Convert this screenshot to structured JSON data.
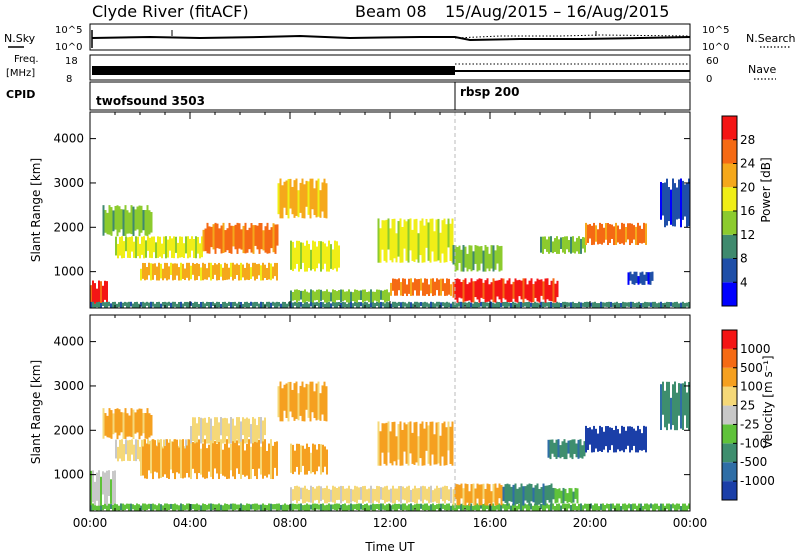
{
  "header": {
    "station": "Clyde River (fitACF)",
    "beam": "Beam 08",
    "dates": "15/Aug/2015 – 16/Aug/2015"
  },
  "params": {
    "nsky_label": "N.Sky",
    "nsearch_label": "N.Search",
    "nsky_ticks": [
      "10^5",
      "10^0"
    ],
    "nsearch_ticks": [
      "10^5",
      "10^0"
    ],
    "freq_label_1": "Freq.",
    "freq_label_2": "[MHz]",
    "freq_ticks": [
      "18",
      "8"
    ],
    "nave_label": "Nave",
    "nave_ticks": [
      "60",
      "0"
    ],
    "cpid_label": "CPID",
    "cpid_segments": [
      {
        "name": "twofsound 3503",
        "start_hour": 0
      },
      {
        "name": "rbsp 200",
        "start_hour": 14.6
      }
    ]
  },
  "chart_data": [
    {
      "type": "heatmap",
      "name": "power-panel",
      "xlabel": "",
      "ylabel": "Slant Range [km]",
      "x_range_hours": [
        0,
        24
      ],
      "ylim": [
        180,
        4600
      ],
      "yticks": [
        "1000",
        "2000",
        "3000",
        "4000"
      ],
      "colorbar": {
        "label": "Power [dB]",
        "ticks": [
          "4",
          "8",
          "12",
          "16",
          "20",
          "24",
          "28"
        ],
        "colors": [
          "#0000ff",
          "#1f4fa8",
          "#3f8a6e",
          "#8ccb2e",
          "#f0ee17",
          "#f5a81b",
          "#f56a14",
          "#f41515"
        ]
      },
      "regions": [
        {
          "t0": 0.0,
          "t1": 0.7,
          "r0": 200,
          "r1": 800,
          "level": 7
        },
        {
          "t0": 0.0,
          "t1": 24.0,
          "r0": 180,
          "r1": 320,
          "level": 2
        },
        {
          "t0": 0.5,
          "t1": 2.5,
          "r0": 1800,
          "r1": 2500,
          "level": 3
        },
        {
          "t0": 1.0,
          "t1": 4.5,
          "r0": 1300,
          "r1": 1800,
          "level": 4
        },
        {
          "t0": 4.5,
          "t1": 7.5,
          "r0": 1400,
          "r1": 2100,
          "level": 6
        },
        {
          "t0": 2.0,
          "t1": 7.5,
          "r0": 800,
          "r1": 1200,
          "level": 5
        },
        {
          "t0": 7.5,
          "t1": 9.5,
          "r0": 2200,
          "r1": 3100,
          "level": 5
        },
        {
          "t0": 8.0,
          "t1": 10.0,
          "r0": 1000,
          "r1": 1700,
          "level": 4
        },
        {
          "t0": 11.5,
          "t1": 14.5,
          "r0": 1200,
          "r1": 2200,
          "level": 4
        },
        {
          "t0": 8.0,
          "t1": 12.0,
          "r0": 300,
          "r1": 600,
          "level": 3
        },
        {
          "t0": 12.0,
          "t1": 14.5,
          "r0": 450,
          "r1": 850,
          "level": 6
        },
        {
          "t0": 14.5,
          "t1": 18.7,
          "r0": 300,
          "r1": 850,
          "level": 7
        },
        {
          "t0": 14.5,
          "t1": 16.5,
          "r0": 1000,
          "r1": 1600,
          "level": 3
        },
        {
          "t0": 18.0,
          "t1": 19.8,
          "r0": 1400,
          "r1": 1800,
          "level": 3
        },
        {
          "t0": 19.8,
          "t1": 22.3,
          "r0": 1600,
          "r1": 2100,
          "level": 6
        },
        {
          "t0": 21.5,
          "t1": 22.5,
          "r0": 700,
          "r1": 1000,
          "level": 1
        },
        {
          "t0": 22.8,
          "t1": 24.0,
          "r0": 2000,
          "r1": 3100,
          "level": 1
        }
      ]
    },
    {
      "type": "heatmap",
      "name": "velocity-panel",
      "xlabel": "Time UT",
      "ylabel": "Slant Range [km]",
      "x_range_hours": [
        0,
        24
      ],
      "xticks": [
        "00:00",
        "04:00",
        "08:00",
        "12:00",
        "16:00",
        "20:00",
        "00:00"
      ],
      "ylim": [
        180,
        4600
      ],
      "yticks": [
        "1000",
        "2000",
        "3000",
        "4000"
      ],
      "colorbar": {
        "label": "Velocity [m s⁻¹]",
        "ticks": [
          "1000",
          "500",
          "100",
          "25",
          "-25",
          "-100",
          "-500",
          "-1000"
        ],
        "colors": [
          "#1b3fa8",
          "#2f6ea6",
          "#3e8e6e",
          "#5fc23a",
          "#c8c8c8",
          "#f5d878",
          "#f5a020",
          "#f56a14",
          "#f41515"
        ]
      },
      "regions": [
        {
          "t0": 0.0,
          "t1": 24.0,
          "r0": 180,
          "r1": 350,
          "level": 3
        },
        {
          "t0": 0.0,
          "t1": 1.0,
          "r0": 300,
          "r1": 1100,
          "level": 4
        },
        {
          "t0": 0.5,
          "t1": 2.5,
          "r0": 1800,
          "r1": 2500,
          "level": 6
        },
        {
          "t0": 1.0,
          "t1": 4.0,
          "r0": 1300,
          "r1": 1800,
          "level": 5
        },
        {
          "t0": 2.0,
          "t1": 7.5,
          "r0": 900,
          "r1": 1800,
          "level": 6
        },
        {
          "t0": 4.0,
          "t1": 7.0,
          "r0": 1700,
          "r1": 2300,
          "level": 5
        },
        {
          "t0": 7.5,
          "t1": 9.5,
          "r0": 2200,
          "r1": 3100,
          "level": 6
        },
        {
          "t0": 8.0,
          "t1": 9.5,
          "r0": 1000,
          "r1": 1700,
          "level": 6
        },
        {
          "t0": 11.5,
          "t1": 14.5,
          "r0": 1200,
          "r1": 2200,
          "level": 6
        },
        {
          "t0": 8.0,
          "t1": 14.5,
          "r0": 350,
          "r1": 750,
          "level": 5
        },
        {
          "t0": 14.5,
          "t1": 16.5,
          "r0": 300,
          "r1": 800,
          "level": 6
        },
        {
          "t0": 16.5,
          "t1": 18.5,
          "r0": 300,
          "r1": 800,
          "level": 2
        },
        {
          "t0": 18.5,
          "t1": 19.5,
          "r0": 350,
          "r1": 700,
          "level": 3
        },
        {
          "t0": 18.3,
          "t1": 19.8,
          "r0": 1350,
          "r1": 1800,
          "level": 2
        },
        {
          "t0": 19.8,
          "t1": 22.3,
          "r0": 1500,
          "r1": 2100,
          "level": 0
        },
        {
          "t0": 22.8,
          "t1": 24.0,
          "r0": 2000,
          "r1": 3100,
          "level": 2
        }
      ]
    }
  ]
}
